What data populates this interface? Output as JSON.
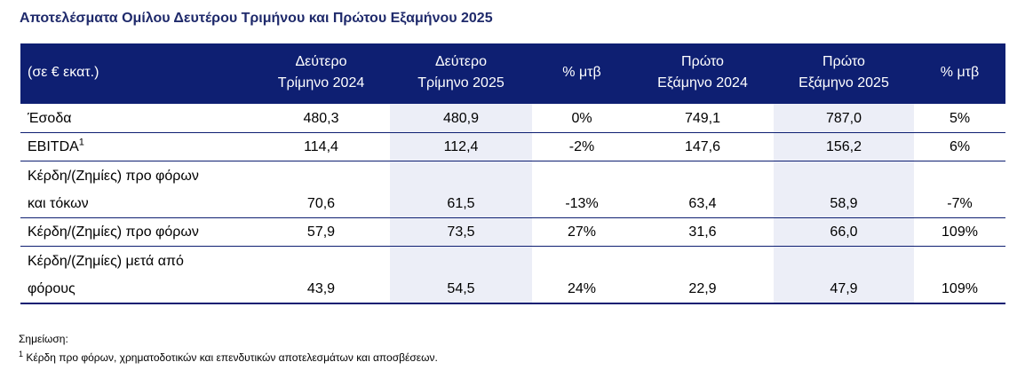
{
  "title": "Αποτελέσματα Ομίλου Δευτέρου Τριμήνου και Πρώτου Εξαμήνου 2025",
  "table": {
    "headers": [
      {
        "line1": "(σε € εκατ.)",
        "line2": ""
      },
      {
        "line1": "Δεύτερο",
        "line2": "Τρίμηνο 2024"
      },
      {
        "line1": "Δεύτερο",
        "line2": "Τρίμηνο 2025"
      },
      {
        "line1": "% μτβ",
        "line2": ""
      },
      {
        "line1": "Πρώτο",
        "line2": "Εξάμηνο 2024"
      },
      {
        "line1": "Πρώτο",
        "line2": "Εξάμηνο 2025"
      },
      {
        "line1": "% μτβ",
        "line2": ""
      }
    ],
    "rows": [
      {
        "label": "Έσοδα",
        "label_sup": "",
        "values": [
          "480,3",
          "480,9",
          "0%",
          "749,1",
          "787,0",
          "5%"
        ]
      },
      {
        "label": "EBITDA",
        "label_sup": "1",
        "values": [
          "114,4",
          "112,4",
          "-2%",
          "147,6",
          "156,2",
          "6%"
        ]
      },
      {
        "label": "Κέρδη/(Ζημίες) προ φόρων και τόκων",
        "label_sup": "",
        "values": [
          "70,6",
          "61,5",
          "-13%",
          "63,4",
          "58,9",
          "-7%"
        ]
      },
      {
        "label": "Κέρδη/(Ζημίες) προ φόρων",
        "label_sup": "",
        "values": [
          "57,9",
          "73,5",
          "27%",
          "31,6",
          "66,0",
          "109%"
        ]
      },
      {
        "label": "Κέρδη/(Ζημίες) μετά από φόρους",
        "label_sup": "",
        "values": [
          "43,9",
          "54,5",
          "24%",
          "22,9",
          "47,9",
          "109%"
        ]
      }
    ]
  },
  "note": {
    "title": "Σημείωση:",
    "marker": "1",
    "text": "Κέρδη προ φόρων, χρηματοδοτικών και επενδυτικών αποτελεσμάτων και αποσβέσεων."
  },
  "colors": {
    "header_bg": "#0e1f72",
    "title_text": "#1f2a6b",
    "shade_bg": "#eceef7"
  }
}
